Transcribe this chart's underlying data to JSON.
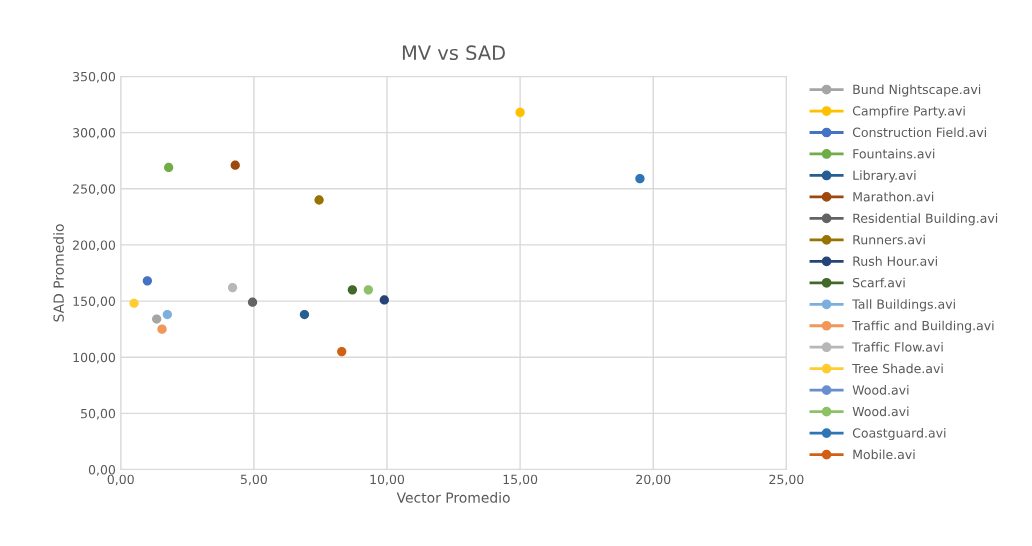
{
  "chart_data": {
    "type": "scatter",
    "title": "MV vs SAD",
    "xlabel": "Vector Promedio",
    "ylabel": "SAD Promedio",
    "xlim": [
      0,
      25
    ],
    "ylim": [
      0,
      350
    ],
    "xticks": [
      {
        "value": 0,
        "label": "0,00"
      },
      {
        "value": 5,
        "label": "5,00"
      },
      {
        "value": 10,
        "label": "10,00"
      },
      {
        "value": 15,
        "label": "15,00"
      },
      {
        "value": 20,
        "label": "20,00"
      },
      {
        "value": 25,
        "label": "25,00"
      }
    ],
    "yticks": [
      {
        "value": 0,
        "label": "0,00"
      },
      {
        "value": 50,
        "label": "50,00"
      },
      {
        "value": 100,
        "label": "100,00"
      },
      {
        "value": 150,
        "label": "150,00"
      },
      {
        "value": 200,
        "label": "200,00"
      },
      {
        "value": 250,
        "label": "250,00"
      },
      {
        "value": 300,
        "label": "300,00"
      },
      {
        "value": 350,
        "label": "350,00"
      }
    ],
    "grid": true,
    "legend": "right",
    "marker": "circle",
    "series": [
      {
        "name": "Bund Nightscape.avi",
        "color": "#a5a5a5",
        "x": [
          1.35
        ],
        "values": [
          134
        ]
      },
      {
        "name": "Campfire Party.avi",
        "color": "#ffc000",
        "x": [
          15.0
        ],
        "values": [
          318
        ]
      },
      {
        "name": "Construction Field.avi",
        "color": "#4472c4",
        "x": [
          1.0
        ],
        "values": [
          168
        ]
      },
      {
        "name": "Fountains.avi",
        "color": "#70ad47",
        "x": [
          1.8
        ],
        "values": [
          269
        ]
      },
      {
        "name": "Library.avi",
        "color": "#255e91",
        "x": [
          6.9
        ],
        "values": [
          138
        ]
      },
      {
        "name": "Marathon.avi",
        "color": "#9e480e",
        "x": [
          4.3
        ],
        "values": [
          271
        ]
      },
      {
        "name": "Residential Building.avi",
        "color": "#636363",
        "x": [
          4.95
        ],
        "values": [
          149
        ]
      },
      {
        "name": "Runners.avi",
        "color": "#997300",
        "x": [
          7.45
        ],
        "values": [
          240
        ]
      },
      {
        "name": "Rush Hour.avi",
        "color": "#264478",
        "x": [
          9.9
        ],
        "values": [
          151
        ]
      },
      {
        "name": "Scarf.avi",
        "color": "#43682b",
        "x": [
          8.7
        ],
        "values": [
          160
        ]
      },
      {
        "name": "Tall Buildings.avi",
        "color": "#7cafdd",
        "x": [
          1.75
        ],
        "values": [
          138
        ]
      },
      {
        "name": "Traffic and Building.avi",
        "color": "#f1975a",
        "x": [
          1.55
        ],
        "values": [
          125
        ]
      },
      {
        "name": "Traffic Flow.avi",
        "color": "#b7b7b7",
        "x": [
          4.2
        ],
        "values": [
          162
        ]
      },
      {
        "name": "Tree Shade.avi",
        "color": "#ffcd33",
        "x": [
          0.5
        ],
        "values": [
          148
        ]
      },
      {
        "name": "Wood.avi",
        "color": "#698ed0",
        "x": [
          null
        ],
        "values": [
          null
        ]
      },
      {
        "name": "Wood.avi",
        "color": "#8cc168",
        "x": [
          9.3
        ],
        "values": [
          160
        ]
      },
      {
        "name": "Coastguard.avi",
        "color": "#2e75b6",
        "x": [
          19.5
        ],
        "values": [
          259
        ]
      },
      {
        "name": "Mobile.avi",
        "color": "#d26012",
        "x": [
          8.3
        ],
        "values": [
          105
        ]
      }
    ]
  }
}
